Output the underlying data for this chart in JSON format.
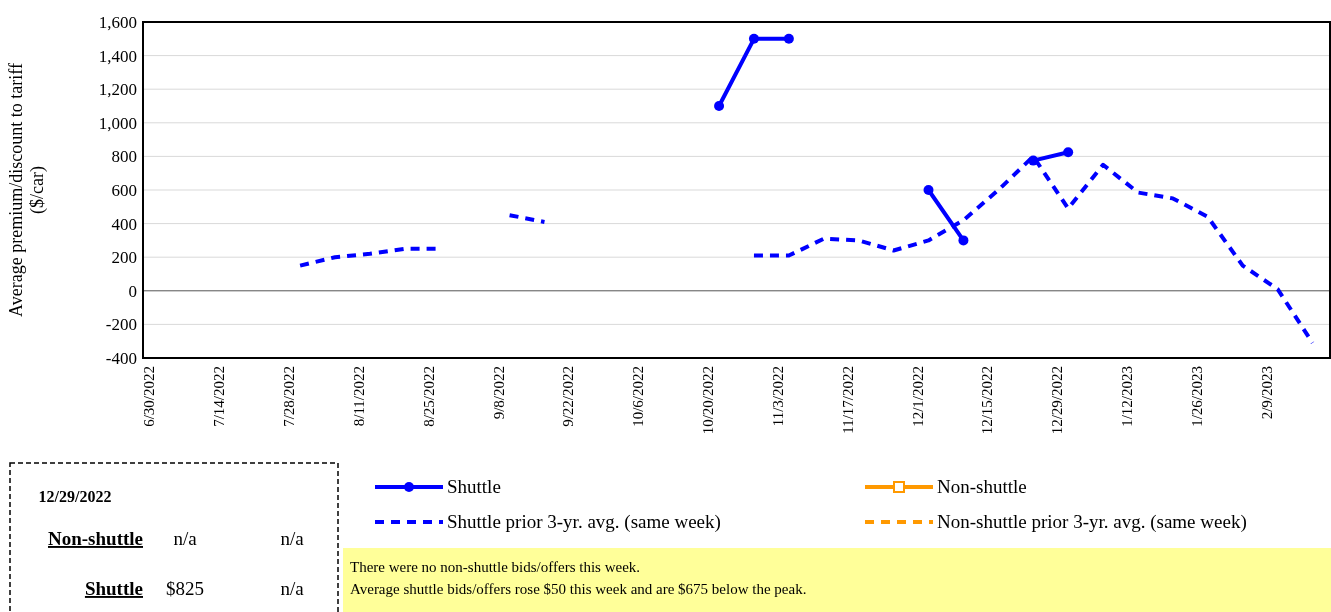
{
  "chart_data": [
    {
      "type": "line",
      "ylabel": "Average premium/discount to tariff ($/car)",
      "categories": [
        "6/30/2022",
        null,
        "7/14/2022",
        null,
        "7/28/2022",
        null,
        "8/11/2022",
        null,
        "8/25/2022",
        null,
        "9/8/2022",
        null,
        "9/22/2022",
        null,
        "10/6/2022",
        null,
        "10/20/2022",
        null,
        "11/3/2022",
        null,
        "11/17/2022",
        null,
        "12/1/2022",
        null,
        "12/15/2022",
        null,
        "12/29/2022",
        null,
        "1/12/2023",
        null,
        "1/26/2023",
        null,
        "2/9/2023",
        null
      ],
      "series": [
        {
          "name": "Shuttle",
          "color": "#0000ff",
          "marker": "circle",
          "line_style": "solid",
          "values": [
            null,
            null,
            null,
            null,
            null,
            null,
            null,
            null,
            null,
            null,
            null,
            null,
            null,
            null,
            null,
            null,
            1100,
            1500,
            1500,
            null,
            null,
            null,
            600,
            300,
            null,
            775,
            825,
            null,
            null,
            null,
            null,
            null,
            null,
            null
          ]
        },
        {
          "name": "Non-shuttle",
          "color": "#ff9900",
          "marker": "square",
          "line_style": "solid",
          "values": [
            null,
            null,
            null,
            null,
            null,
            null,
            null,
            null,
            null,
            null,
            null,
            null,
            null,
            null,
            null,
            null,
            null,
            null,
            null,
            null,
            null,
            null,
            null,
            null,
            null,
            null,
            null,
            null,
            null,
            null,
            null,
            null,
            null,
            null
          ]
        },
        {
          "name": "Shuttle prior 3-yr. avg. (same week)",
          "color": "#0000ff",
          "marker": "none",
          "line_style": "dashed",
          "values": [
            null,
            null,
            null,
            null,
            150,
            200,
            220,
            250,
            250,
            null,
            450,
            410,
            null,
            null,
            null,
            null,
            null,
            210,
            210,
            310,
            300,
            240,
            300,
            420,
            600,
            800,
            490,
            750,
            585,
            550,
            440,
            150,
            10,
            -310
          ]
        },
        {
          "name": "Non-shuttle prior 3-yr. avg. (same week)",
          "color": "#ff9900",
          "marker": "none",
          "line_style": "dashed",
          "values": [
            null,
            null,
            null,
            null,
            null,
            null,
            null,
            null,
            null,
            null,
            null,
            null,
            null,
            null,
            null,
            null,
            null,
            null,
            null,
            null,
            null,
            null,
            null,
            null,
            null,
            null,
            null,
            null,
            null,
            null,
            null,
            null,
            null,
            null
          ]
        }
      ],
      "ylim": [
        -400,
        1600
      ],
      "yticks": [
        -400,
        -200,
        0,
        200,
        400,
        600,
        800,
        {
          "value": 1000,
          "label": "1,000"
        },
        {
          "value": 1200,
          "label": "1,200"
        },
        {
          "value": 1400,
          "label": "1,400"
        },
        {
          "value": 1600,
          "label": "1,600"
        }
      ],
      "grid": "y",
      "legend": "bottom",
      "annotations": [
        "There were no non-shuttle  bids/offers  this week.",
        "Average shuttle bids/offers rose $50 this week and are $675 below the peak."
      ]
    },
    {
      "type": "other",
      "annotations": [
        "12/29/2022",
        "Non-shuttle",
        "n/a",
        "n/a",
        "Shuttle",
        "$825",
        "n/a"
      ]
    }
  ]
}
